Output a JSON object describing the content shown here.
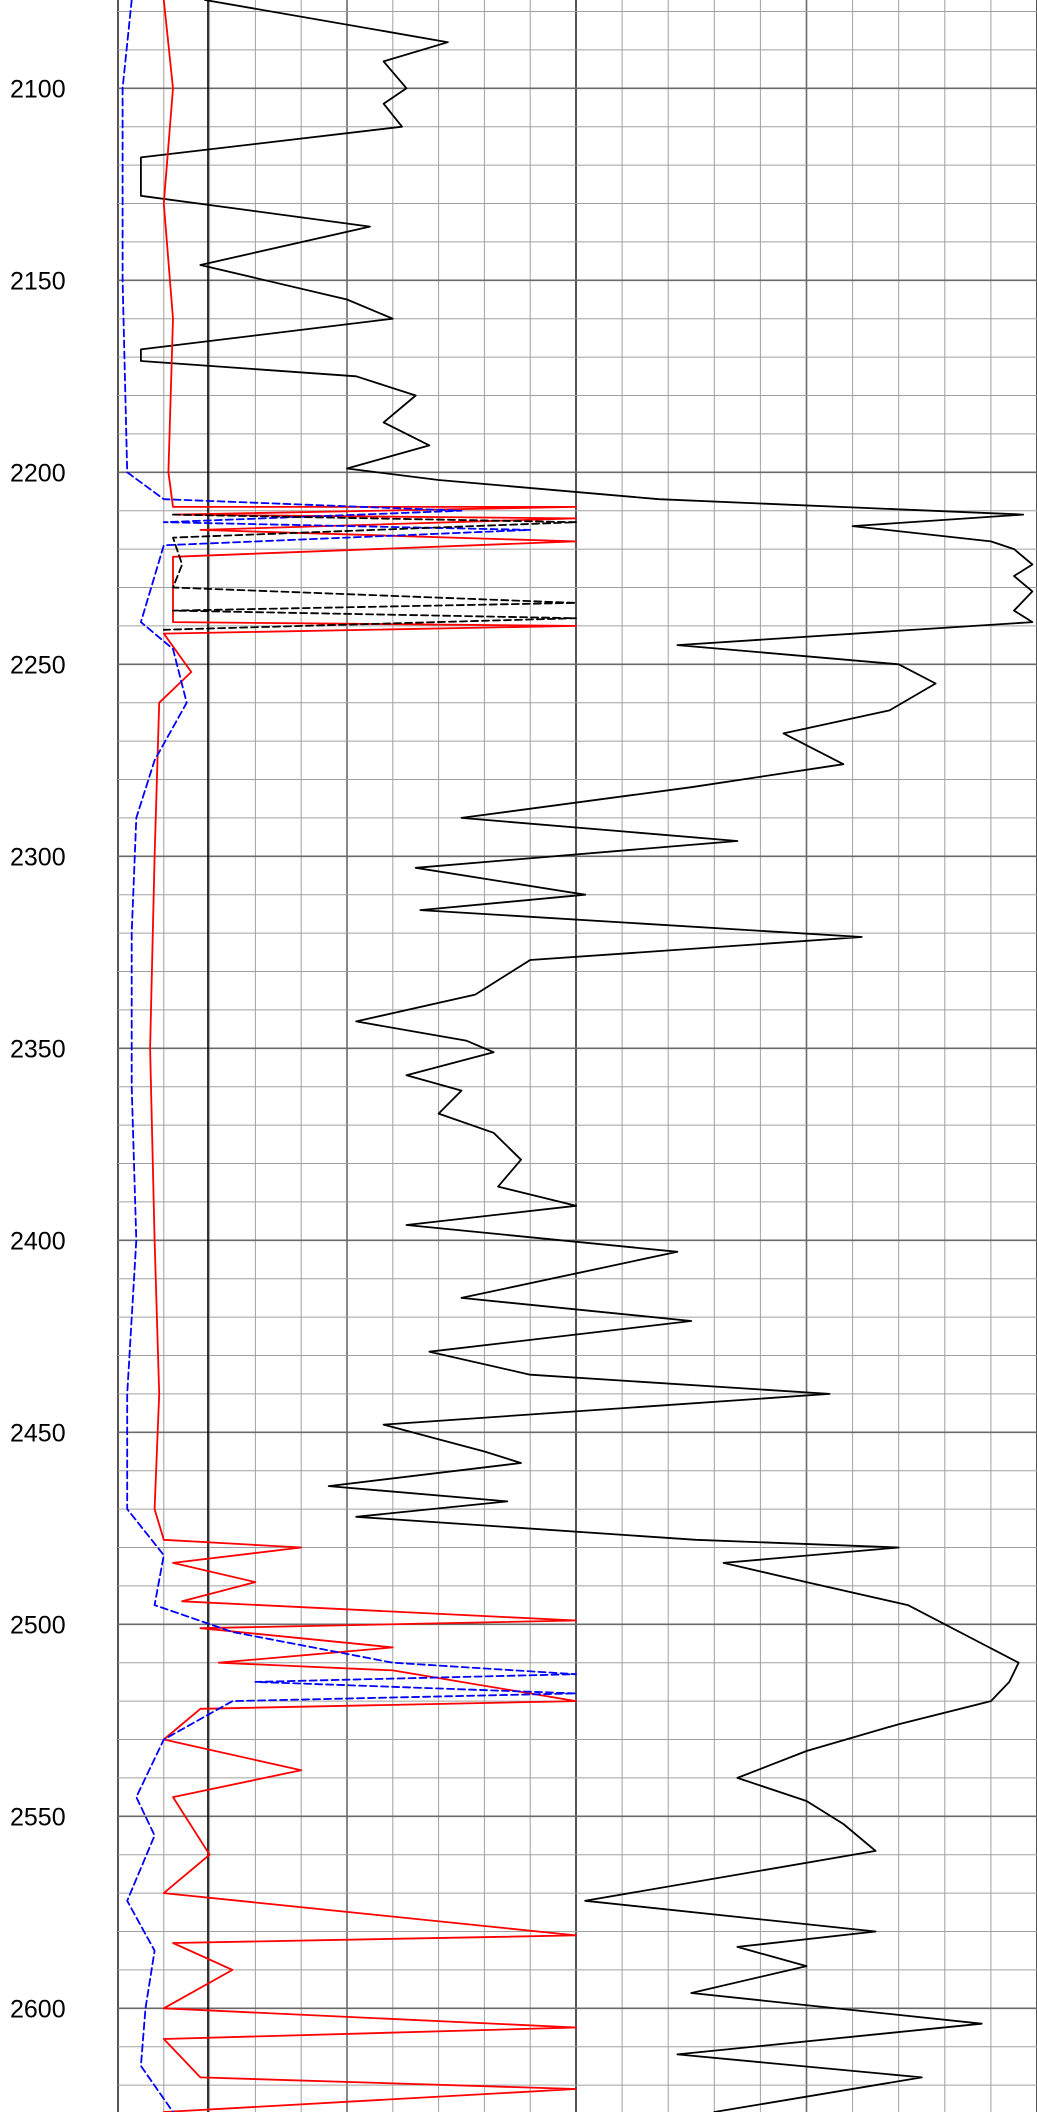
{
  "chart_data": {
    "type": "line",
    "title": "",
    "xlabel": "",
    "ylabel": "",
    "depth_axis": {
      "range": [
        2077,
        2627
      ],
      "ticks": [
        2100,
        2150,
        2200,
        2250,
        2300,
        2350,
        2400,
        2450,
        2500,
        2550,
        2600
      ],
      "minor_step": 10,
      "inverted": true
    },
    "tracks": [
      {
        "range": [
          0,
          1
        ],
        "minor_divisions": 10
      },
      {
        "range": [
          0,
          1
        ],
        "minor_divisions": 10
      }
    ],
    "colors": {
      "black": "#000000",
      "red": "#ff0000",
      "blue": "#0000ff",
      "grid": "#a0a0a0"
    },
    "grid": true,
    "legend": "none",
    "series": [
      {
        "id": "black-solid",
        "color": "#000000",
        "dash": "solid",
        "points": [
          [
            0.19,
            2077
          ],
          [
            0.72,
            2088
          ],
          [
            0.58,
            2093
          ],
          [
            0.63,
            2100
          ],
          [
            0.58,
            2104
          ],
          [
            0.62,
            2110
          ],
          [
            0.05,
            2118
          ],
          [
            0.05,
            2128
          ],
          [
            0.55,
            2136
          ],
          [
            0.18,
            2146
          ],
          [
            0.5,
            2155
          ],
          [
            0.6,
            2160
          ],
          [
            0.05,
            2168
          ],
          [
            0.05,
            2171
          ],
          [
            0.52,
            2175
          ],
          [
            0.65,
            2180
          ],
          [
            0.58,
            2187
          ],
          [
            0.68,
            2193
          ],
          [
            0.5,
            2199
          ],
          [
            0.7,
            2202
          ],
          [
            1.18,
            2207
          ],
          [
            1.97,
            2211
          ],
          [
            1.6,
            2214
          ],
          [
            1.9,
            2218
          ],
          [
            1.95,
            2220
          ],
          [
            1.99,
            2224
          ],
          [
            1.95,
            2227
          ],
          [
            1.99,
            2231
          ],
          [
            1.95,
            2236
          ],
          [
            1.99,
            2239
          ],
          [
            1.22,
            2245
          ],
          [
            1.7,
            2250
          ],
          [
            1.78,
            2255
          ],
          [
            1.68,
            2262
          ],
          [
            1.45,
            2268
          ],
          [
            1.58,
            2276
          ],
          [
            1.25,
            2282
          ],
          [
            0.75,
            2290
          ],
          [
            1.35,
            2296
          ],
          [
            0.65,
            2303
          ],
          [
            1.02,
            2310
          ],
          [
            0.66,
            2314
          ],
          [
            1.62,
            2321
          ],
          [
            0.9,
            2327
          ],
          [
            0.78,
            2336
          ],
          [
            0.52,
            2343
          ],
          [
            0.76,
            2348
          ],
          [
            0.82,
            2351
          ],
          [
            0.63,
            2357
          ],
          [
            0.75,
            2361
          ],
          [
            0.7,
            2367
          ],
          [
            0.82,
            2372
          ],
          [
            0.88,
            2379
          ],
          [
            0.83,
            2386
          ],
          [
            1.0,
            2391
          ],
          [
            0.63,
            2396
          ],
          [
            1.22,
            2403
          ],
          [
            0.75,
            2415
          ],
          [
            1.25,
            2421
          ],
          [
            0.68,
            2429
          ],
          [
            0.9,
            2435
          ],
          [
            1.55,
            2440
          ],
          [
            0.58,
            2448
          ],
          [
            0.8,
            2455
          ],
          [
            0.88,
            2458
          ],
          [
            0.46,
            2464
          ],
          [
            0.85,
            2468
          ],
          [
            0.52,
            2472
          ],
          [
            1.26,
            2478
          ],
          [
            1.7,
            2480
          ],
          [
            1.32,
            2484
          ],
          [
            1.5,
            2489
          ],
          [
            1.72,
            2495
          ],
          [
            1.88,
            2505
          ],
          [
            1.96,
            2510
          ],
          [
            1.94,
            2515
          ],
          [
            1.9,
            2520
          ],
          [
            1.7,
            2526
          ],
          [
            1.5,
            2533
          ],
          [
            1.35,
            2540
          ],
          [
            1.5,
            2546
          ],
          [
            1.58,
            2552
          ],
          [
            1.65,
            2559
          ],
          [
            1.02,
            2572
          ],
          [
            1.65,
            2580
          ],
          [
            1.35,
            2584
          ],
          [
            1.5,
            2589
          ],
          [
            1.25,
            2596
          ],
          [
            1.88,
            2604
          ],
          [
            1.22,
            2612
          ],
          [
            1.75,
            2618
          ],
          [
            1.3,
            2627
          ]
        ]
      },
      {
        "id": "red-solid",
        "color": "#ff0000",
        "dash": "solid",
        "points": [
          [
            0.1,
            2077
          ],
          [
            0.12,
            2100
          ],
          [
            0.1,
            2130
          ],
          [
            0.12,
            2160
          ],
          [
            0.11,
            2200
          ],
          [
            0.12,
            2209
          ],
          [
            1.0,
            2209
          ],
          [
            0.12,
            2211
          ],
          [
            1.0,
            2212
          ],
          [
            0.18,
            2215
          ],
          [
            1.0,
            2218
          ],
          [
            0.12,
            2222
          ],
          [
            0.12,
            2239
          ],
          [
            1.0,
            2240
          ],
          [
            0.1,
            2242
          ],
          [
            0.16,
            2252
          ],
          [
            0.09,
            2260
          ],
          [
            0.08,
            2300
          ],
          [
            0.07,
            2350
          ],
          [
            0.08,
            2400
          ],
          [
            0.09,
            2440
          ],
          [
            0.08,
            2470
          ],
          [
            0.1,
            2478
          ],
          [
            0.4,
            2480
          ],
          [
            0.12,
            2484
          ],
          [
            0.3,
            2489
          ],
          [
            0.14,
            2494
          ],
          [
            1.0,
            2499
          ],
          [
            0.18,
            2501
          ],
          [
            0.6,
            2506
          ],
          [
            0.22,
            2510
          ],
          [
            0.6,
            2512
          ],
          [
            1.0,
            2520
          ],
          [
            0.18,
            2522
          ],
          [
            0.1,
            2530
          ],
          [
            0.4,
            2538
          ],
          [
            0.12,
            2545
          ],
          [
            0.2,
            2560
          ],
          [
            0.1,
            2570
          ],
          [
            1.0,
            2581
          ],
          [
            0.12,
            2583
          ],
          [
            0.25,
            2590
          ],
          [
            0.1,
            2600
          ],
          [
            1.0,
            2605
          ],
          [
            0.1,
            2608
          ],
          [
            0.18,
            2618
          ],
          [
            1.0,
            2621
          ],
          [
            0.1,
            2627
          ]
        ]
      },
      {
        "id": "blue-dashed",
        "color": "#0000ff",
        "dash": "dashed",
        "points": [
          [
            0.03,
            2077
          ],
          [
            0.01,
            2100
          ],
          [
            0.01,
            2150
          ],
          [
            0.02,
            2200
          ],
          [
            0.1,
            2207
          ],
          [
            0.75,
            2210
          ],
          [
            0.1,
            2213
          ],
          [
            0.9,
            2215
          ],
          [
            0.1,
            2219
          ],
          [
            0.05,
            2239
          ],
          [
            0.12,
            2246
          ],
          [
            0.15,
            2260
          ],
          [
            0.08,
            2275
          ],
          [
            0.04,
            2290
          ],
          [
            0.03,
            2320
          ],
          [
            0.03,
            2360
          ],
          [
            0.04,
            2400
          ],
          [
            0.02,
            2440
          ],
          [
            0.02,
            2470
          ],
          [
            0.1,
            2482
          ],
          [
            0.08,
            2495
          ],
          [
            0.25,
            2502
          ],
          [
            0.6,
            2510
          ],
          [
            1.0,
            2513
          ],
          [
            0.3,
            2515
          ],
          [
            1.0,
            2518
          ],
          [
            0.25,
            2520
          ],
          [
            0.1,
            2530
          ],
          [
            0.04,
            2545
          ],
          [
            0.08,
            2555
          ],
          [
            0.02,
            2572
          ],
          [
            0.08,
            2585
          ],
          [
            0.06,
            2600
          ],
          [
            0.05,
            2615
          ],
          [
            0.12,
            2627
          ]
        ]
      },
      {
        "id": "black-dashed",
        "color": "#000000",
        "dash": "dashed",
        "points": [
          [
            0.12,
            2211
          ],
          [
            1.0,
            2213
          ],
          [
            0.12,
            2217
          ],
          [
            0.14,
            2224
          ],
          [
            0.12,
            2230
          ],
          [
            1.0,
            2234
          ],
          [
            0.12,
            2236
          ],
          [
            1.0,
            2238
          ],
          [
            0.1,
            2241
          ]
        ]
      }
    ]
  }
}
